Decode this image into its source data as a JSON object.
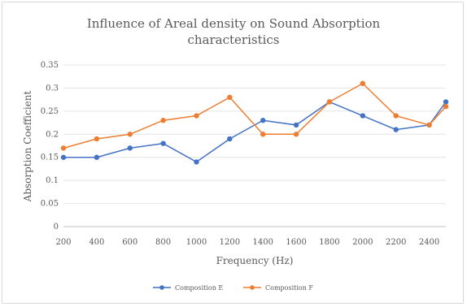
{
  "chart_data": {
    "type": "line",
    "title_line1": "Influence of Areal density on Sound Absorption",
    "title_line2": "characteristics",
    "xlabel": "Frequency (Hz)",
    "ylabel": "Absorption Coefficient",
    "x": [
      200,
      400,
      600,
      800,
      1000,
      1200,
      1400,
      1600,
      1800,
      2000,
      2200,
      2400,
      2500
    ],
    "x_ticks": [
      "200",
      "400",
      "600",
      "800",
      "1000",
      "1200",
      "1400",
      "1600",
      "1800",
      "2000",
      "2200",
      "2400"
    ],
    "y_ticks": [
      "0",
      "0.05",
      "0.1",
      "0.15",
      "0.2",
      "0.25",
      "0.3",
      "0.35"
    ],
    "xlim": [
      200,
      2500
    ],
    "ylim": [
      0,
      0.35
    ],
    "grid": true,
    "legend": "bottom",
    "series": [
      {
        "name": "Composition E",
        "color": "#4472c4",
        "values": [
          0.15,
          0.15,
          0.17,
          0.18,
          0.14,
          0.19,
          0.23,
          0.22,
          0.27,
          0.24,
          0.21,
          0.22,
          0.27
        ]
      },
      {
        "name": "Composition F",
        "color": "#ed7d31",
        "values": [
          0.17,
          0.19,
          0.2,
          0.23,
          0.24,
          0.28,
          0.2,
          0.2,
          0.27,
          0.31,
          0.24,
          0.22,
          0.26
        ]
      }
    ]
  }
}
